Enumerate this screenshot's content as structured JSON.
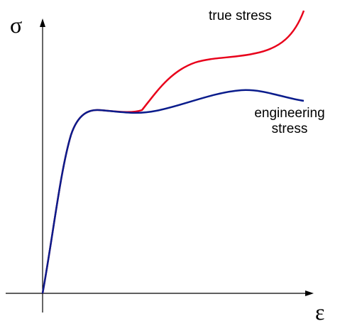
{
  "labels": {
    "y_axis": "σ",
    "x_axis": "ε",
    "true_stress": "true stress",
    "engineering_stress": [
      "engineering",
      "stress"
    ]
  }
}
